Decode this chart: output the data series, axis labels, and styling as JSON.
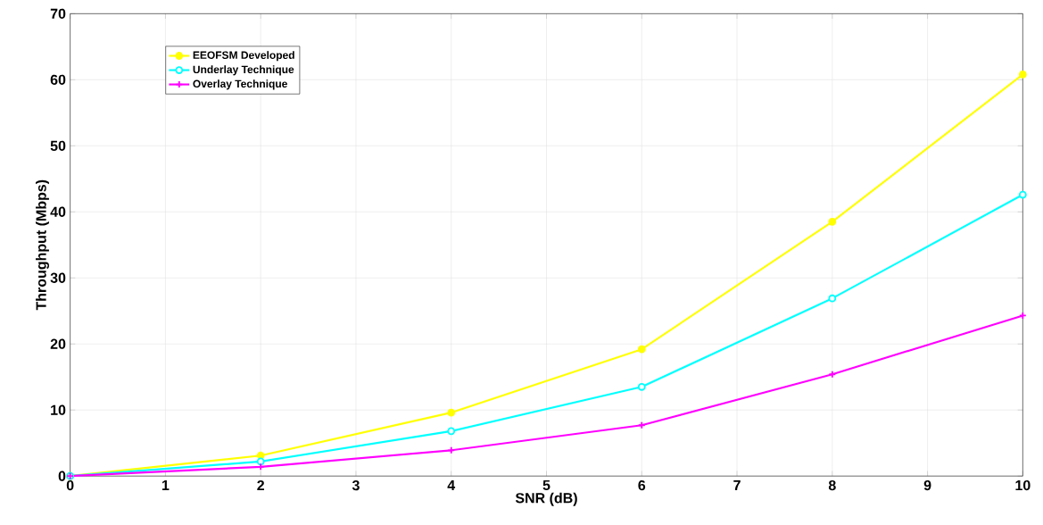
{
  "chart_data": {
    "type": "line",
    "xlabel": "SNR (dB)",
    "ylabel": "Throughput (Mbps)",
    "x": [
      0,
      2,
      4,
      6,
      8,
      10
    ],
    "series": [
      {
        "name": "EEOFSM Developed",
        "color": "#ffff00",
        "marker": "circle",
        "values": [
          0,
          3.1,
          9.6,
          19.2,
          38.5,
          60.8
        ]
      },
      {
        "name": "Underlay Technique",
        "color": "#00ffff",
        "marker": "circle",
        "values": [
          0,
          2.2,
          6.8,
          13.5,
          26.9,
          42.6
        ]
      },
      {
        "name": "Overlay Technique",
        "color": "#ff00ff",
        "marker": "cross",
        "values": [
          0,
          1.4,
          3.9,
          7.7,
          15.4,
          24.3
        ]
      }
    ],
    "xlim": [
      0,
      10
    ],
    "ylim": [
      0,
      70
    ],
    "xticks": [
      0,
      1,
      2,
      3,
      4,
      5,
      6,
      7,
      8,
      9,
      10
    ],
    "yticks": [
      0,
      10,
      20,
      30,
      40,
      50,
      60,
      70
    ],
    "grid": true,
    "legend": "top left",
    "line_style": "solid"
  }
}
